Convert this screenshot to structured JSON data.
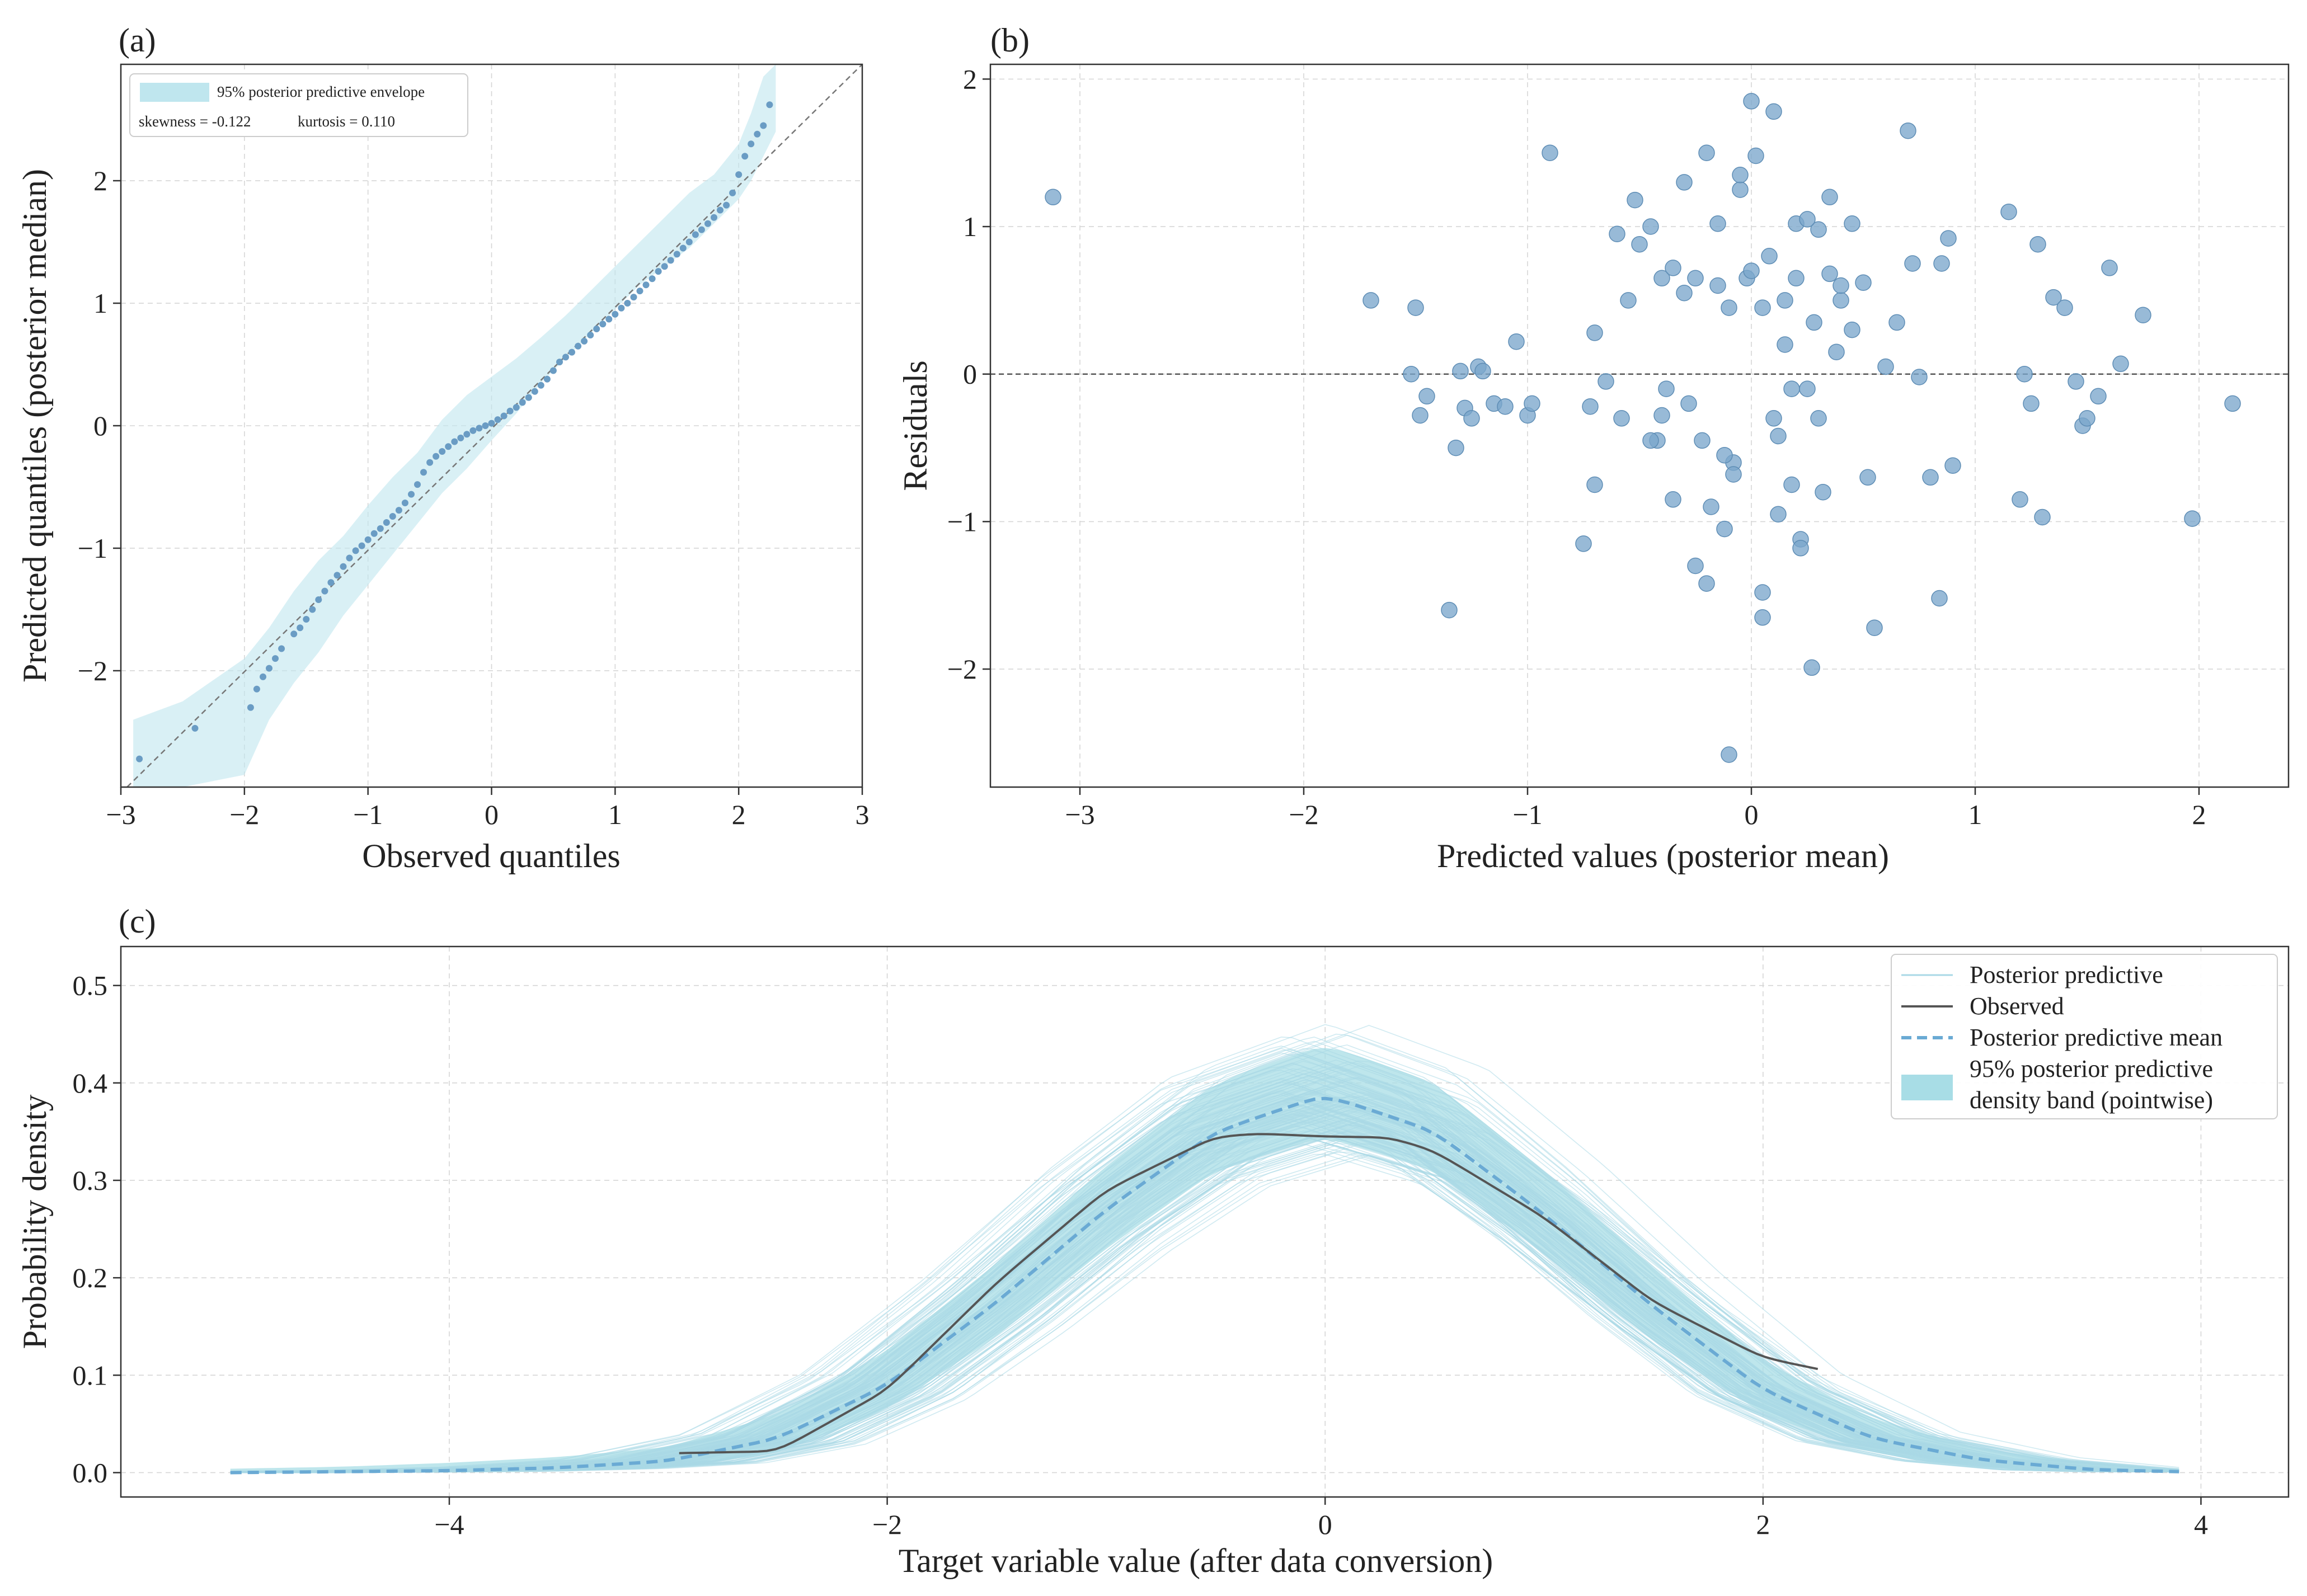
{
  "colors": {
    "envelope": "#bfe6ee",
    "points": "#6a9cc4",
    "scatter_fill": "#7ba7cc",
    "observed": "#555555",
    "ppd_line": "#a9d8e6",
    "pp_mean": "#6aaad4",
    "band": "#a8dde6"
  },
  "chart_data": [
    {
      "panel": "(a)",
      "type": "scatter",
      "xlabel": "Observed quantiles",
      "ylabel": "Predicted quantiles (posterior median)",
      "xlim": [
        -3,
        3
      ],
      "ylim": [
        -2.95,
        2.95
      ],
      "xticks": [
        "−3",
        "−2",
        "−1",
        "0",
        "1",
        "2",
        "3"
      ],
      "yticks": [
        "−2",
        "−1",
        "0",
        "1",
        "2"
      ],
      "grid": true,
      "legend": {
        "position": "top-left",
        "envelope_label": "95% posterior predictive envelope",
        "skewness_text": "skewness = -0.122",
        "kurtosis_text": "kurtosis = 0.110"
      },
      "reference_line": "y = x (dashed)",
      "envelope": {
        "x": [
          -2.9,
          -2.5,
          -2.0,
          -1.8,
          -1.6,
          -1.4,
          -1.2,
          -1.0,
          -0.8,
          -0.6,
          -0.4,
          -0.2,
          0.0,
          0.2,
          0.4,
          0.6,
          0.8,
          1.0,
          1.2,
          1.4,
          1.6,
          1.8,
          2.0,
          2.1,
          2.2,
          2.3
        ],
        "lower": [
          -2.95,
          -2.95,
          -2.85,
          -2.4,
          -2.1,
          -1.85,
          -1.55,
          -1.3,
          -1.05,
          -0.8,
          -0.55,
          -0.35,
          -0.12,
          0.1,
          0.35,
          0.55,
          0.75,
          0.95,
          1.15,
          1.3,
          1.45,
          1.65,
          1.85,
          2.0,
          2.2,
          2.4
        ],
        "upper": [
          -2.4,
          -2.25,
          -1.9,
          -1.65,
          -1.35,
          -1.1,
          -0.9,
          -0.65,
          -0.42,
          -0.22,
          0.05,
          0.25,
          0.4,
          0.55,
          0.72,
          0.9,
          1.1,
          1.3,
          1.5,
          1.7,
          1.9,
          2.05,
          2.3,
          2.55,
          2.85,
          2.95
        ]
      },
      "points": {
        "x": [
          -2.85,
          -2.4,
          -1.95,
          -1.9,
          -1.85,
          -1.8,
          -1.75,
          -1.7,
          -1.6,
          -1.55,
          -1.5,
          -1.45,
          -1.4,
          -1.35,
          -1.3,
          -1.25,
          -1.2,
          -1.15,
          -1.1,
          -1.05,
          -1.0,
          -0.95,
          -0.9,
          -0.85,
          -0.8,
          -0.75,
          -0.7,
          -0.65,
          -0.6,
          -0.55,
          -0.5,
          -0.45,
          -0.4,
          -0.35,
          -0.3,
          -0.25,
          -0.2,
          -0.15,
          -0.1,
          -0.05,
          0.0,
          0.05,
          0.1,
          0.15,
          0.2,
          0.25,
          0.3,
          0.35,
          0.4,
          0.45,
          0.5,
          0.55,
          0.6,
          0.65,
          0.7,
          0.75,
          0.8,
          0.85,
          0.9,
          0.95,
          1.0,
          1.05,
          1.1,
          1.15,
          1.2,
          1.25,
          1.3,
          1.35,
          1.4,
          1.45,
          1.5,
          1.55,
          1.6,
          1.65,
          1.7,
          1.75,
          1.8,
          1.85,
          1.9,
          1.95,
          2.0,
          2.05,
          2.1,
          2.15,
          2.2,
          2.25
        ],
        "y": [
          -2.72,
          -2.47,
          -2.3,
          -2.15,
          -2.05,
          -1.98,
          -1.9,
          -1.82,
          -1.7,
          -1.65,
          -1.58,
          -1.5,
          -1.42,
          -1.35,
          -1.28,
          -1.22,
          -1.15,
          -1.08,
          -1.02,
          -0.98,
          -0.93,
          -0.88,
          -0.84,
          -0.79,
          -0.74,
          -0.69,
          -0.63,
          -0.56,
          -0.48,
          -0.38,
          -0.3,
          -0.25,
          -0.21,
          -0.17,
          -0.13,
          -0.1,
          -0.07,
          -0.04,
          -0.02,
          0.0,
          0.02,
          0.05,
          0.08,
          0.12,
          0.15,
          0.19,
          0.23,
          0.28,
          0.33,
          0.38,
          0.45,
          0.52,
          0.56,
          0.6,
          0.65,
          0.69,
          0.74,
          0.79,
          0.83,
          0.87,
          0.91,
          0.96,
          1.0,
          1.05,
          1.1,
          1.15,
          1.2,
          1.26,
          1.3,
          1.35,
          1.4,
          1.45,
          1.5,
          1.56,
          1.6,
          1.65,
          1.7,
          1.76,
          1.8,
          1.9,
          2.05,
          2.2,
          2.3,
          2.38,
          2.45,
          2.62
        ]
      }
    },
    {
      "panel": "(b)",
      "type": "scatter",
      "xlabel": "Predicted values (posterior mean)",
      "ylabel": "Residuals",
      "xlim": [
        -3.4,
        2.4
      ],
      "ylim": [
        -2.8,
        2.1
      ],
      "xticks": [
        "−3",
        "−2",
        "−1",
        "0",
        "1",
        "2"
      ],
      "yticks": [
        "−2",
        "−1",
        "0",
        "1",
        "2"
      ],
      "grid": true,
      "reference_line": "y = 0 (dashed)",
      "x": [
        -3.12,
        -1.7,
        -1.52,
        -1.5,
        -1.48,
        -1.45,
        -1.32,
        -1.3,
        -1.28,
        -1.25,
        -1.22,
        -1.2,
        -1.15,
        -1.1,
        -1.05,
        -1.0,
        -0.98,
        -0.75,
        -0.72,
        -0.7,
        -0.65,
        -0.6,
        -0.58,
        -0.55,
        -0.52,
        -0.5,
        -0.45,
        -0.42,
        -0.4,
        -0.38,
        -0.35,
        -0.3,
        -0.28,
        -0.25,
        -0.22,
        -0.2,
        -0.18,
        -0.15,
        -0.12,
        -0.1,
        -0.08,
        -0.05,
        -0.02,
        0.0,
        0.02,
        0.05,
        0.08,
        0.1,
        0.12,
        0.15,
        0.18,
        0.2,
        0.22,
        0.25,
        0.28,
        0.3,
        0.32,
        0.35,
        0.38,
        0.4,
        0.45,
        0.5,
        0.55,
        0.6,
        0.65,
        0.7,
        0.72,
        0.75,
        0.8,
        0.85,
        0.88,
        0.9,
        1.15,
        1.2,
        1.22,
        1.25,
        1.28,
        1.3,
        1.35,
        1.4,
        1.45,
        1.48,
        1.5,
        1.55,
        1.6,
        1.65,
        1.75,
        1.97,
        2.15,
        -0.1,
        -0.2,
        0.05,
        0.27,
        -1.35,
        -0.7,
        0.52,
        0.84,
        -0.9,
        0.0,
        -0.3,
        0.35,
        -0.15,
        0.1,
        0.2,
        -0.05,
        0.15,
        0.25,
        0.4,
        -0.25,
        0.3,
        -0.35,
        -0.45,
        0.45,
        -0.4,
        0.05,
        0.12,
        -0.12,
        -0.08,
        0.18,
        0.22
      ],
      "y": [
        1.2,
        0.5,
        0.0,
        0.45,
        -0.28,
        -0.15,
        -0.5,
        0.02,
        -0.23,
        -0.3,
        0.05,
        0.02,
        -0.2,
        -0.22,
        0.22,
        -0.28,
        -0.2,
        -1.15,
        -0.22,
        0.28,
        -0.05,
        0.95,
        -0.3,
        0.5,
        1.18,
        0.88,
        1.0,
        -0.45,
        0.65,
        -0.1,
        -0.85,
        0.55,
        -0.2,
        0.65,
        -0.45,
        1.5,
        -0.9,
        0.6,
        -1.05,
        0.45,
        -0.6,
        1.25,
        0.65,
        0.7,
        1.48,
        0.45,
        0.8,
        -0.3,
        -0.95,
        0.2,
        -0.75,
        0.65,
        -1.12,
        -0.1,
        0.35,
        0.98,
        -0.8,
        0.68,
        0.15,
        0.5,
        0.3,
        0.62,
        -1.72,
        0.05,
        0.35,
        1.65,
        0.75,
        -0.02,
        -0.7,
        0.75,
        0.92,
        -0.62,
        1.1,
        -0.85,
        0.0,
        -0.2,
        0.88,
        -0.97,
        0.52,
        0.45,
        -0.05,
        -0.35,
        -0.3,
        -0.15,
        0.72,
        0.07,
        0.4,
        -0.98,
        -0.2,
        -2.58,
        -1.42,
        -1.65,
        -1.99,
        -1.6,
        -0.75,
        -0.7,
        -1.52,
        1.5,
        1.85,
        1.3,
        1.2,
        1.02,
        1.78,
        1.02,
        1.35,
        0.5,
        1.05,
        0.6,
        -1.3,
        -0.3,
        0.72,
        -0.45,
        1.02,
        -0.28,
        -1.48,
        -0.42,
        -0.55,
        -0.68,
        -0.1,
        -1.18
      ]
    },
    {
      "panel": "(c)",
      "type": "line",
      "xlabel": "Target variable value (after data conversion)",
      "ylabel": "Probability density",
      "xlim": [
        -5.5,
        4.4
      ],
      "ylim": [
        -0.025,
        0.54
      ],
      "xticks": [
        "−4",
        "−2",
        "0",
        "2",
        "4"
      ],
      "yticks": [
        "0.0",
        "0.1",
        "0.2",
        "0.3",
        "0.4",
        "0.5"
      ],
      "grid": true,
      "legend": {
        "position": "top-right",
        "posterior_predictive": "Posterior predictive",
        "observed": "Observed",
        "pp_mean": "Posterior predictive mean",
        "band_line1": "95% posterior predictive",
        "band_line2": "density band (pointwise)"
      },
      "x": [
        -5.0,
        -4.5,
        -4.0,
        -3.5,
        -3.0,
        -2.5,
        -2.0,
        -1.5,
        -1.0,
        -0.5,
        0.0,
        0.5,
        1.0,
        1.5,
        2.0,
        2.5,
        3.0,
        3.5,
        3.9
      ],
      "series": [
        {
          "name": "Posterior predictive mean",
          "values": [
            0.0,
            0.001,
            0.002,
            0.005,
            0.012,
            0.035,
            0.09,
            0.175,
            0.27,
            0.35,
            0.388,
            0.35,
            0.265,
            0.17,
            0.085,
            0.035,
            0.013,
            0.003,
            0.001
          ]
        },
        {
          "name": "band_lower",
          "values": [
            0.0,
            0.0,
            0.0,
            0.001,
            0.005,
            0.02,
            0.065,
            0.14,
            0.23,
            0.31,
            0.345,
            0.31,
            0.225,
            0.135,
            0.06,
            0.02,
            0.005,
            0.001,
            0.0
          ]
        },
        {
          "name": "band_upper",
          "values": [
            0.004,
            0.006,
            0.01,
            0.016,
            0.026,
            0.06,
            0.125,
            0.215,
            0.315,
            0.4,
            0.44,
            0.4,
            0.31,
            0.21,
            0.115,
            0.055,
            0.024,
            0.01,
            0.004
          ]
        }
      ],
      "observed": {
        "name": "Observed",
        "x": [
          -2.95,
          -2.5,
          -2.0,
          -1.5,
          -1.0,
          -0.5,
          -0.3,
          0.0,
          0.3,
          0.5,
          1.0,
          1.5,
          2.0,
          2.28
        ],
        "y": [
          0.02,
          0.022,
          0.085,
          0.195,
          0.29,
          0.345,
          0.348,
          0.345,
          0.344,
          0.33,
          0.262,
          0.175,
          0.118,
          0.105
        ]
      },
      "draws_count": 140
    }
  ],
  "panels": {
    "a": "(a)",
    "b": "(b)",
    "c": "(c)"
  }
}
